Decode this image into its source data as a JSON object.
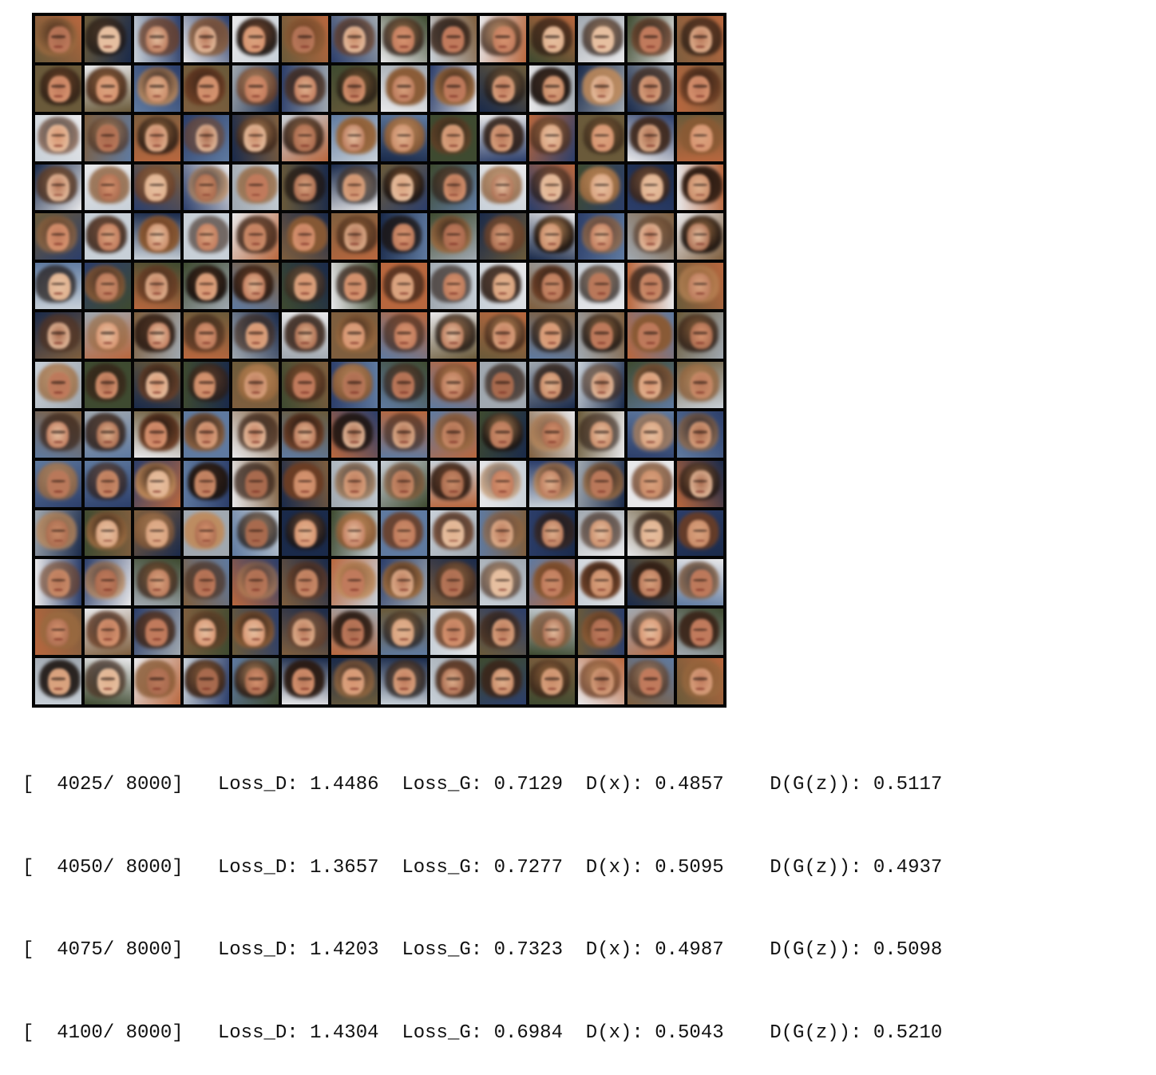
{
  "figure": {
    "rows": 14,
    "cols": 14,
    "palette": {
      "skin": [
        "#d9a27e",
        "#c98b68",
        "#e0b18e",
        "#b9785a",
        "#d89470",
        "#c07a5c",
        "#e6bfa0",
        "#a86a4e"
      ],
      "hair": [
        "#2a1a12",
        "#4a2e1e",
        "#6b3d24",
        "#8a5a34",
        "#1a120e",
        "#9a6a40",
        "#c08a5a",
        "#3a2418"
      ],
      "bg": [
        "#5f7aa0",
        "#2c3e6a",
        "#a0a8b0",
        "#6a5a3a",
        "#c8d0d8",
        "#3e4a30",
        "#b8673e",
        "#1a2a4a",
        "#e8e8ea",
        "#7e5e3e"
      ]
    }
  },
  "log": [
    {
      "step": "[  4025/ 8000]",
      "loss_d_label": "Loss_D:",
      "loss_d": "1.4486",
      "loss_g_label": "Loss_G:",
      "loss_g": "0.7129",
      "dx_label": "D(x):",
      "dx": "0.4857",
      "dgz_label": "D(G(z)):",
      "dgz": "0.5117"
    },
    {
      "step": "[  4050/ 8000]",
      "loss_d_label": "Loss_D:",
      "loss_d": "1.3657",
      "loss_g_label": "Loss_G:",
      "loss_g": "0.7277",
      "dx_label": "D(x):",
      "dx": "0.5095",
      "dgz_label": "D(G(z)):",
      "dgz": "0.4937"
    },
    {
      "step": "[  4075/ 8000]",
      "loss_d_label": "Loss_D:",
      "loss_d": "1.4203",
      "loss_g_label": "Loss_G:",
      "loss_g": "0.7323",
      "dx_label": "D(x):",
      "dx": "0.4987",
      "dgz_label": "D(G(z)):",
      "dgz": "0.5098"
    },
    {
      "step": "[  4100/ 8000]",
      "loss_d_label": "Loss_D:",
      "loss_d": "1.4304",
      "loss_g_label": "Loss_G:",
      "loss_g": "0.6984",
      "dx_label": "D(x):",
      "dx": "0.5043",
      "dgz_label": "D(G(z)):",
      "dgz": "0.5210"
    }
  ]
}
